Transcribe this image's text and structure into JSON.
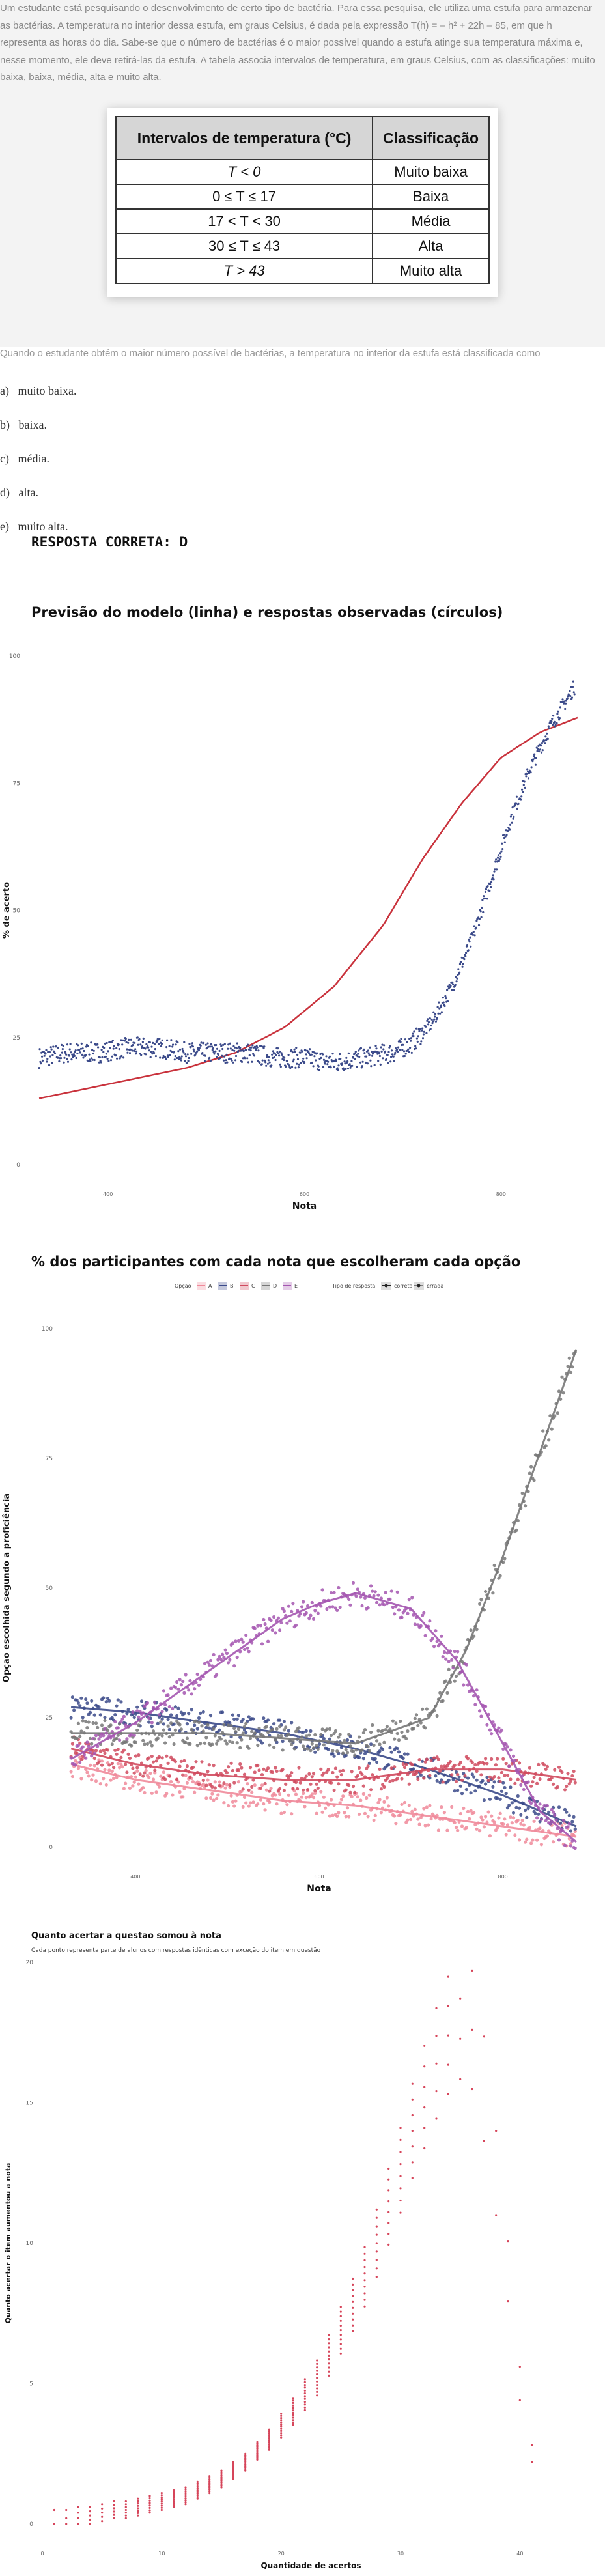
{
  "question": {
    "stem": "Um estudante está pesquisando o desenvolvimento de certo tipo de bactéria. Para essa pesquisa, ele utiliza uma estufa para armazenar as bactérias. A temperatura no interior dessa estufa, em graus Celsius, é dada pela expressão T(h) = – h² + 22h – 85, em que h representa as horas do dia. Sabe-se que o número de bactérias é o maior possível quando a estufa atinge sua temperatura máxima e, nesse momento, ele deve retirá-las da estufa. A tabela associa intervalos de temperatura, em graus Celsius, com as classificações: muito baixa, baixa, média, alta e muito alta.",
    "table_headers": [
      "Intervalos de temperatura (°C)",
      "Classificação"
    ],
    "table_rows": [
      {
        "interval": "T < 0",
        "class": "Muito baixa"
      },
      {
        "interval": "0 ≤ T ≤ 17",
        "class": "Baixa"
      },
      {
        "interval": "17 < T < 30",
        "class": "Média"
      },
      {
        "interval": "30 ≤ T ≤ 43",
        "class": "Alta"
      },
      {
        "interval": "T > 43",
        "class": "Muito alta"
      }
    ],
    "prompt": "Quando o estudante obtém o maior número possível de bactérias, a temperatura no interior da estufa está classificada como",
    "alternatives": [
      {
        "letter": "a)",
        "text": "muito baixa."
      },
      {
        "letter": "b)",
        "text": "baixa."
      },
      {
        "letter": "c)",
        "text": "média."
      },
      {
        "letter": "d)",
        "text": "alta."
      },
      {
        "letter": "e)",
        "text": "muito alta."
      }
    ],
    "answer": "RESPOSTA CORRETA: D"
  },
  "chart_data": [
    {
      "type": "scatter",
      "title": "Previsão do modelo (linha) e respostas observadas (círculos)",
      "xlabel": "Nota",
      "ylabel": "% de acerto",
      "xlim": [
        320,
        880
      ],
      "ylim": [
        0,
        100
      ],
      "xticks": [
        400,
        600,
        800
      ],
      "yticks": [
        0,
        25,
        50,
        75,
        100
      ],
      "series": [
        {
          "kind": "line",
          "color": "#c9323c",
          "x": [
            330,
            380,
            430,
            480,
            530,
            580,
            630,
            680,
            720,
            760,
            800,
            840,
            880
          ],
          "y": [
            13,
            15,
            17,
            19,
            22,
            27,
            35,
            47,
            60,
            71,
            80,
            85,
            88
          ]
        },
        {
          "kind": "points",
          "color": "#3b4a8a",
          "x": [
            330,
            360,
            390,
            420,
            450,
            480,
            510,
            540,
            570,
            600,
            630,
            660,
            690,
            710,
            730,
            750,
            770,
            790,
            810,
            830,
            850,
            875
          ],
          "y": [
            21,
            22,
            22,
            23,
            23,
            22,
            22,
            22,
            21,
            21,
            20,
            21,
            22,
            24,
            28,
            35,
            44,
            56,
            68,
            78,
            86,
            94
          ]
        }
      ]
    },
    {
      "type": "scatter",
      "title": "% dos participantes com cada nota que escolheram cada opção",
      "xlabel": "Nota",
      "ylabel": "Opção escolhida segundo a proficiência",
      "xlim": [
        320,
        880
      ],
      "ylim": [
        0,
        100
      ],
      "xticks": [
        400,
        600,
        800
      ],
      "yticks": [
        0,
        25,
        50,
        75,
        100
      ],
      "legend": {
        "option_label": "Opção",
        "options": [
          {
            "label": "A",
            "color": "#f08a9a"
          },
          {
            "label": "B",
            "color": "#3b4a8a"
          },
          {
            "label": "C",
            "color": "#d04a5e"
          },
          {
            "label": "D",
            "color": "#777777"
          },
          {
            "label": "E",
            "color": "#a456b0"
          }
        ],
        "type_label": "Tipo de resposta",
        "types": [
          "correta",
          "errada"
        ]
      },
      "series": [
        {
          "name": "A",
          "color": "#f08a9a",
          "x": [
            330,
            400,
            480,
            560,
            640,
            720,
            800,
            880
          ],
          "y": [
            16,
            13,
            11,
            9,
            8,
            6,
            4,
            2
          ]
        },
        {
          "name": "B",
          "color": "#3b4a8a",
          "x": [
            330,
            400,
            480,
            560,
            640,
            720,
            800,
            880
          ],
          "y": [
            27,
            26,
            24,
            22,
            19,
            15,
            10,
            4
          ]
        },
        {
          "name": "C",
          "color": "#d04a5e",
          "x": [
            330,
            400,
            480,
            560,
            640,
            720,
            800,
            880
          ],
          "y": [
            19,
            16,
            14,
            13,
            13,
            15,
            15,
            13
          ]
        },
        {
          "name": "D",
          "color": "#777777",
          "x": [
            330,
            400,
            480,
            560,
            640,
            720,
            760,
            800,
            840,
            880
          ],
          "y": [
            22,
            22,
            22,
            21,
            20,
            25,
            38,
            56,
            76,
            96
          ]
        },
        {
          "name": "E",
          "color": "#a456b0",
          "x": [
            330,
            400,
            480,
            560,
            600,
            640,
            700,
            750,
            800,
            840,
            880
          ],
          "y": [
            17,
            24,
            34,
            44,
            47,
            49,
            46,
            36,
            20,
            7,
            1
          ]
        }
      ]
    },
    {
      "type": "scatter",
      "title": "Quanto acertar a questão somou à nota",
      "subtitle": "Cada ponto representa parte de alunos com respostas idênticas com exceção do item em questão",
      "xlabel": "Quantidade de acertos",
      "ylabel": "Quanto acertar o item aumentou a nota",
      "xlim": [
        0,
        45
      ],
      "ylim": [
        0,
        20
      ],
      "xticks": [
        0,
        10,
        20,
        30,
        40
      ],
      "yticks": [
        0,
        5,
        10,
        15,
        20
      ],
      "series": [
        {
          "kind": "points",
          "color": "#d6455a",
          "x": [
            1,
            2,
            3,
            4,
            5,
            6,
            7,
            8,
            9,
            10,
            11,
            12,
            13,
            14,
            15,
            16,
            17,
            18,
            19,
            20,
            21,
            22,
            23,
            24,
            25,
            26,
            27,
            28,
            29,
            30,
            31,
            32,
            33,
            34,
            35,
            36,
            37,
            38,
            39,
            40,
            41
          ],
          "y": [
            0.2,
            0.2,
            0.3,
            0.3,
            0.4,
            0.5,
            0.5,
            0.6,
            0.7,
            0.8,
            0.9,
            1.0,
            1.2,
            1.4,
            1.6,
            1.9,
            2.2,
            2.6,
            3.0,
            3.5,
            4.0,
            4.6,
            5.2,
            6.0,
            6.9,
            7.8,
            8.8,
            10.0,
            11.3,
            12.6,
            14.0,
            15.2,
            16.4,
            17.4,
            18.0,
            17.6,
            15.5,
            12.5,
            9.0,
            5.0,
            2.5
          ]
        }
      ]
    }
  ]
}
